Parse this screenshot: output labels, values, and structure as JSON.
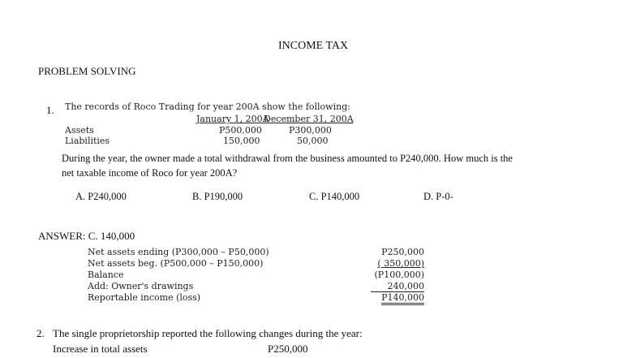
{
  "title": "INCOME TAX",
  "section": "PROBLEM SOLVING",
  "q1": {
    "number": "1.",
    "intro": "The records of Roco Trading for year 200A show the following:",
    "col_headers": [
      "January 1, 200A",
      "December 31, 200A"
    ],
    "rows": [
      {
        "label": "Assets",
        "values": [
          "P500,000",
          "P300,000"
        ]
      },
      {
        "label": "Liabilities",
        "values": [
          "150,000",
          "50,000"
        ]
      }
    ],
    "question_line1": "During the year, the owner made a total withdrawal from the business amounted to   P240,000. How much is the",
    "question_line2": "net taxable income of Roco for year 200A?",
    "options": [
      "A. P240,000",
      "B. P190,000",
      "C. P140,000",
      "D. P-0-"
    ],
    "answer": "ANSWER: C. 140,000",
    "solution": [
      {
        "label": "Net assets ending (P300,000 – P50,000)",
        "value": "P250,000"
      },
      {
        "label": "Net assets beg. (P500,000 – P150,000)",
        "value": "( 350,000)"
      },
      {
        "label": "Balance",
        "value": "(P100,000)"
      },
      {
        "label": "Add: Owner's drawings",
        "value": "240,000"
      },
      {
        "label": "Reportable income (loss)",
        "value": "P140,000"
      }
    ]
  },
  "q2": {
    "number": "2.",
    "intro": "The single proprietorship reported the following changes during the year:",
    "rows": [
      {
        "label": "Increase in total assets",
        "value": "P250,000"
      }
    ]
  }
}
